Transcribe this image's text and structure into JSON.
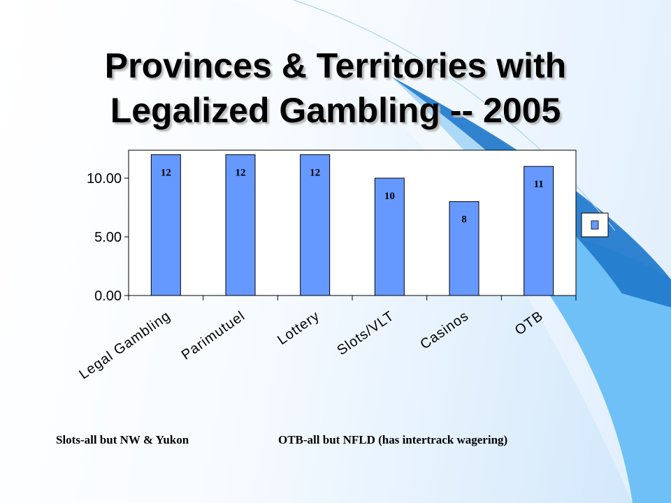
{
  "title_line1": "Provinces & Territories with",
  "title_line2": "Legalized Gambling -- 2005",
  "footnotes": {
    "left": "Slots-all but NW & Yukon",
    "right": "OTB-all but NFLD (has intertrack wagering)"
  },
  "colors": {
    "bar": "#6699ff",
    "accent": "#1e7ad6"
  },
  "chart_data": {
    "type": "bar",
    "categories": [
      "Legal Gambling",
      "Parimutuel",
      "Lottery",
      "Slots/VLT",
      "Casinos",
      "OTB"
    ],
    "values": [
      12,
      12,
      12,
      10,
      8,
      11
    ],
    "data_labels": [
      "12",
      "12",
      "12",
      "10",
      "8",
      "11"
    ],
    "ylim": [
      0,
      12
    ],
    "yticks": [
      0,
      5,
      10
    ],
    "ytick_labels": [
      "0.00",
      "5.00",
      "10.00"
    ],
    "grid": false,
    "legend": {
      "position": "right",
      "entries": [
        ""
      ]
    }
  }
}
